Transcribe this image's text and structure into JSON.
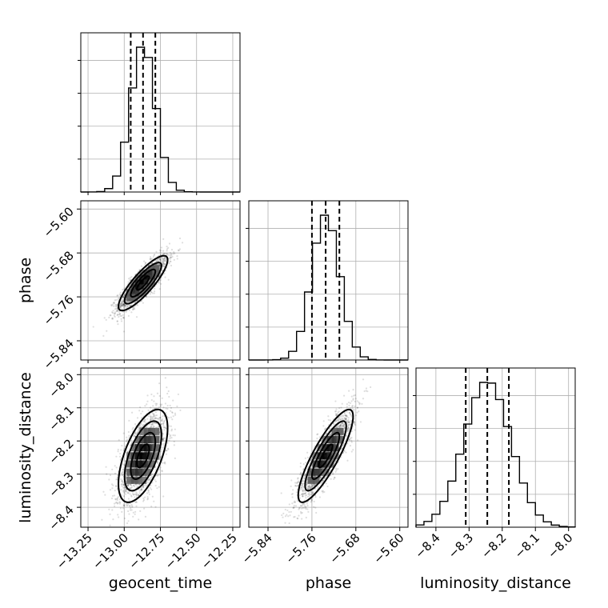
{
  "chart_data": {
    "type": "corner",
    "parameters": [
      {
        "name": "geocent_time",
        "label": "geocent_time",
        "range": [
          -13.3,
          -12.2
        ],
        "ticks": [
          -13.25,
          -13.0,
          -12.75,
          -12.5,
          -12.25
        ],
        "tick_labels": [
          "−13.25",
          "−13.00",
          "−12.75",
          "−12.50",
          "−12.25"
        ],
        "mean": -12.87,
        "sd": 0.085,
        "quantiles": [
          -12.955,
          -12.87,
          -12.785
        ]
      },
      {
        "name": "phase",
        "label": "phase",
        "range": [
          -5.875,
          -5.585
        ],
        "ticks": [
          -5.84,
          -5.76,
          -5.68,
          -5.6
        ],
        "tick_labels": [
          "−5.84",
          "−5.76",
          "−5.68",
          "−5.60"
        ],
        "mean": -5.735,
        "sd": 0.025,
        "quantiles": [
          -5.76,
          -5.735,
          -5.71
        ]
      },
      {
        "name": "luminosity_distance",
        "label": "luminosity_distance",
        "range": [
          -8.46,
          -7.98
        ],
        "ticks": [
          -8.4,
          -8.3,
          -8.2,
          -8.1,
          -8.0
        ],
        "tick_labels": [
          "−8.4",
          "−8.3",
          "−8.2",
          "−8.1",
          "−8.0"
        ],
        "mean": -8.245,
        "sd": 0.07,
        "quantiles": [
          -8.31,
          -8.245,
          -8.18
        ]
      }
    ],
    "correlations": {
      "phase|geocent_time": 0.85,
      "luminosity_distance|geocent_time": 0.6,
      "luminosity_distance|phase": 0.85
    },
    "contour_levels_sigma": [
      0.5,
      1.0,
      1.5,
      2.0
    ],
    "histogram_bins": 20,
    "grid": true
  }
}
